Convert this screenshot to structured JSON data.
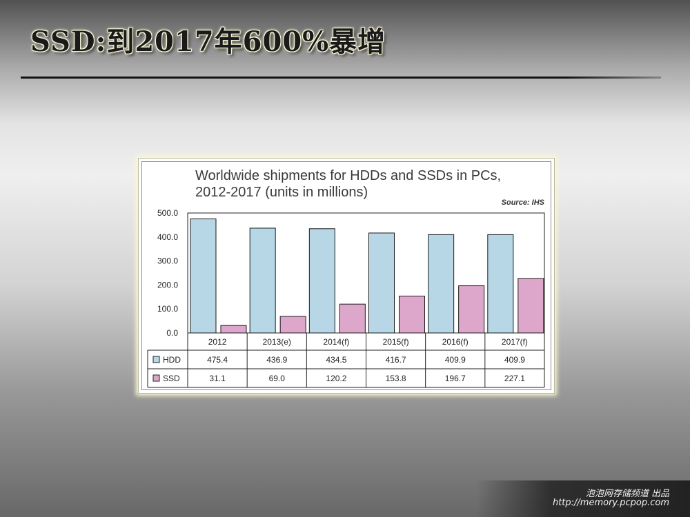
{
  "slide": {
    "title": "SSD:到2017年600%暴增"
  },
  "footer": {
    "line1": "泡泡网存储频道 出品",
    "line2": "http://memory.pcpop.com"
  },
  "chart_data": {
    "type": "bar",
    "title_line1": "Worldwide shipments for HDDs and SSDs in PCs,",
    "title_line2": "2012-2017 (units in millions)",
    "source": "Source: IHS",
    "categories": [
      "2012",
      "2013(e)",
      "2014(f)",
      "2015(f)",
      "2016(f)",
      "2017(f)"
    ],
    "ylim": [
      0,
      500
    ],
    "yticks": [
      "0.0",
      "100.0",
      "200.0",
      "300.0",
      "400.0",
      "500.0"
    ],
    "series": [
      {
        "name": "HDD",
        "color": "#b7d7e6",
        "values": [
          475.4,
          436.9,
          434.5,
          416.7,
          409.9,
          409.9
        ],
        "labels": [
          "475.4",
          "436.9",
          "434.5",
          "416.7",
          "409.9",
          "409.9"
        ]
      },
      {
        "name": "SSD",
        "color": "#dda7cc",
        "values": [
          31.1,
          69.0,
          120.2,
          153.8,
          196.7,
          227.1
        ],
        "labels": [
          "31.1",
          "69.0",
          "120.2",
          "153.8",
          "196.7",
          "227.1"
        ]
      }
    ],
    "data_table": true,
    "grid": false,
    "legend": "table"
  }
}
